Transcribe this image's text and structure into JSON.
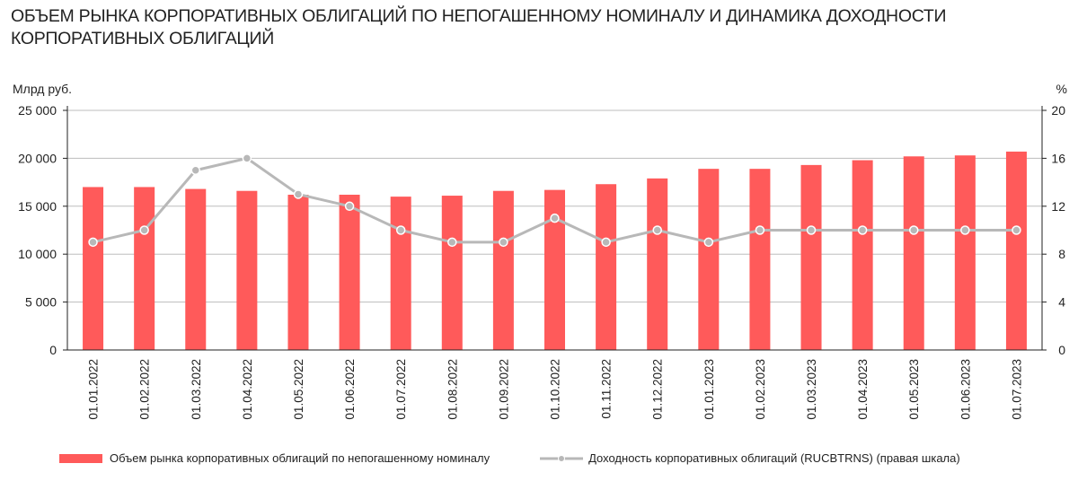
{
  "title": "ОБЪЕМ РЫНКА КОРПОРАТИВНЫХ ОБЛИГАЦИЙ ПО НЕПОГАШЕННОМУ НОМИНАЛУ И ДИНАМИКА ДОХОДНОСТИ КОРПОРАТИВНЫХ ОБЛИГАЦИЙ",
  "chart_data": {
    "type": "bar+line",
    "title": "ОБЪЕМ РЫНКА КОРПОРАТИВНЫХ ОБЛИГАЦИЙ ПО НЕПОГАШЕННОМУ НОМИНАЛУ И ДИНАМИКА ДОХОДНОСТИ КОРПОРАТИВНЫХ ОБЛИГАЦИЙ",
    "ylabel": "Млрд руб.",
    "y2label": "%",
    "ylim": [
      0,
      25000
    ],
    "y2lim": [
      0,
      20
    ],
    "yticks": [
      "0",
      "5 000",
      "10 000",
      "15 000",
      "20 000",
      "25 000"
    ],
    "y2ticks": [
      "0",
      "4",
      "8",
      "12",
      "16",
      "20"
    ],
    "categories": [
      "01.01.2022",
      "01.02.2022",
      "01.03.2022",
      "01.04.2022",
      "01.05.2022",
      "01.06.2022",
      "01.07.2022",
      "01.08.2022",
      "01.09.2022",
      "01.10.2022",
      "01.11.2022",
      "01.12.2022",
      "01.01.2023",
      "01.02.2023",
      "01.03.2023",
      "01.04.2023",
      "01.05.2023",
      "01.06.2023",
      "01.07.2023"
    ],
    "series": [
      {
        "name": "Объем рынка корпоративных облигаций по непогашенному номиналу",
        "type": "bar",
        "axis": "left",
        "color": "#ff5a5a",
        "values": [
          17000,
          17000,
          16800,
          16600,
          16200,
          16200,
          16000,
          16100,
          16600,
          16700,
          17300,
          17900,
          18900,
          18900,
          19300,
          19800,
          20200,
          20300,
          20700
        ]
      },
      {
        "name": "Доходность корпоративных облигаций (RUCBTRNS) (правая шкала)",
        "type": "line",
        "axis": "right",
        "color": "#b8b8b8",
        "values": [
          9,
          10,
          15,
          16,
          13,
          12,
          10,
          9,
          9,
          11,
          9,
          10,
          9,
          10,
          10,
          10,
          10,
          10,
          10
        ]
      }
    ],
    "grid": true,
    "legend": "bottom"
  }
}
